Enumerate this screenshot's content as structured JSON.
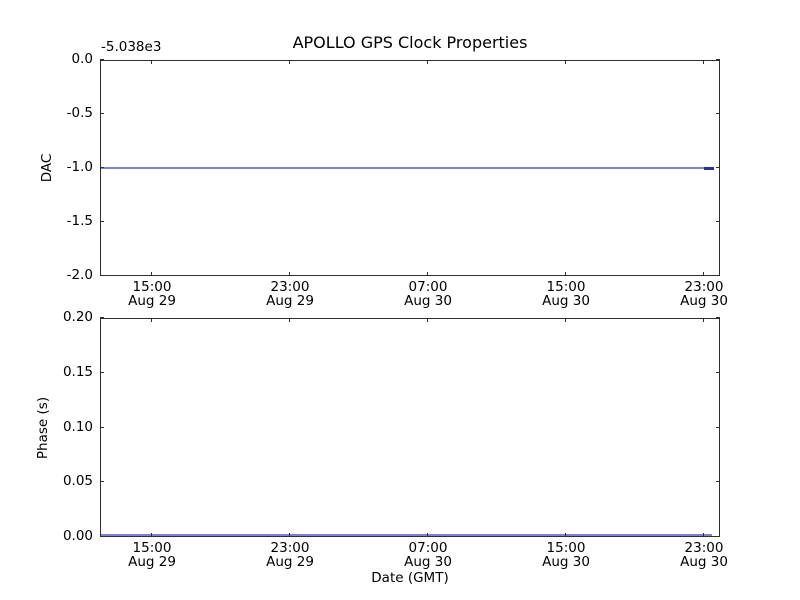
{
  "figure": {
    "title": "APOLLO GPS Clock Properties",
    "colors": {
      "background": "#ffffff",
      "axes": "#2e2e2e",
      "text": "#000000",
      "line": "#0000ff"
    }
  },
  "chart_data": [
    {
      "type": "line",
      "title": "APOLLO GPS Clock Properties",
      "ylabel": "DAC",
      "xlabel": "",
      "axis_offset_text": "-5.038e3",
      "ylim": [
        -2.0,
        0.0
      ],
      "yticks": [
        0.0,
        -0.5,
        -1.0,
        -1.5,
        -2.0
      ],
      "ytick_labels": [
        "0.0",
        "-0.5",
        "-1.0",
        "-1.5",
        "-2.0"
      ],
      "xticks": [
        {
          "time": "15:00",
          "date": "Aug 29"
        },
        {
          "time": "23:00",
          "date": "Aug 29"
        },
        {
          "time": "07:00",
          "date": "Aug 30"
        },
        {
          "time": "15:00",
          "date": "Aug 30"
        },
        {
          "time": "23:00",
          "date": "Aug 30"
        }
      ],
      "grid": false,
      "legend": null,
      "series": [
        {
          "name": "DAC",
          "shape": "constant horizontal line",
          "constant_value": -1.0,
          "value_with_axis_offset": -5039.0,
          "color": "#0000ff",
          "rendered_color": "rgba(85,90,235,0.78)",
          "x_start_frac": 0.0,
          "x_end_frac": 0.987,
          "denser_segment_at_end": true,
          "end_segment_color": "#2a2db0"
        }
      ]
    },
    {
      "type": "line",
      "title": "",
      "ylabel": "Phase (s)",
      "xlabel": "Date (GMT)",
      "axis_offset_text": "",
      "ylim": [
        0.0,
        0.2
      ],
      "yticks": [
        0.2,
        0.15,
        0.1,
        0.05,
        0.0
      ],
      "ytick_labels": [
        "0.20",
        "0.15",
        "0.10",
        "0.05",
        "0.00"
      ],
      "xticks": [
        {
          "time": "15:00",
          "date": "Aug 29"
        },
        {
          "time": "23:00",
          "date": "Aug 29"
        },
        {
          "time": "07:00",
          "date": "Aug 30"
        },
        {
          "time": "15:00",
          "date": "Aug 30"
        },
        {
          "time": "23:00",
          "date": "Aug 30"
        }
      ],
      "grid": false,
      "legend": null,
      "series": [
        {
          "name": "Phase",
          "shape": "constant horizontal line",
          "constant_value": 0.0,
          "color": "#0000ff",
          "rendered_color": "rgba(85,90,235,0.78)",
          "x_start_frac": 0.0,
          "x_end_frac": 0.987,
          "denser_segment_at_end": false,
          "end_segment_color": "#2a2db0"
        }
      ]
    }
  ]
}
